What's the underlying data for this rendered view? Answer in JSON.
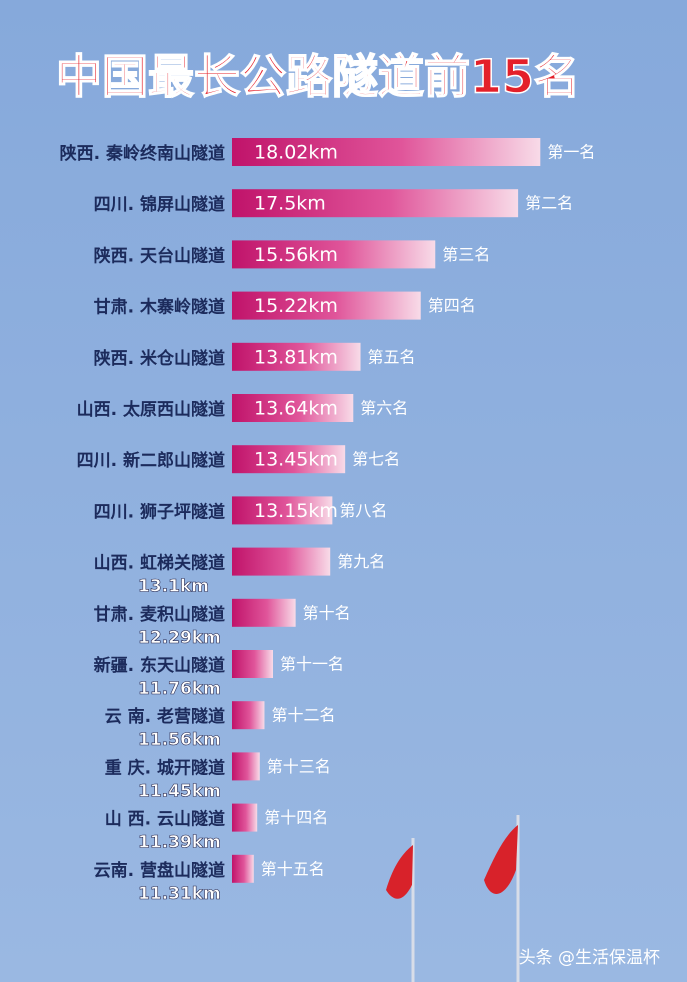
{
  "chart_data": {
    "type": "bar",
    "orientation": "horizontal",
    "title": "中国最长公路隧道前15名",
    "categories": [
      "陕西. 秦岭终南山隧道",
      "四川. 锦屏山隧道",
      "陕西. 天台山隧道",
      "甘肃. 木寨岭隧道",
      "陕西. 米仓山隧道",
      "山西. 太原西山隧道",
      "四川. 新二郎山隧道",
      "四川. 狮子坪隧道",
      "山西. 虹梯关隧道",
      "甘肃. 麦积山隧道",
      "新疆. 东天山隧道",
      "云 南. 老营隧道",
      "重 庆. 城开隧道",
      "山 西. 云山隧道",
      "云南. 营盘山隧道"
    ],
    "values": [
      18.02,
      17.5,
      15.56,
      15.22,
      13.81,
      13.64,
      13.45,
      13.15,
      13.1,
      12.29,
      11.76,
      11.56,
      11.45,
      11.39,
      11.31
    ],
    "value_labels": [
      "18.02km",
      "17.5km",
      "15.56km",
      "15.22km",
      "13.81km",
      "13.64km",
      "13.45km",
      "13.15km",
      "13.1km",
      "12.29km",
      "11.76km",
      "11.56km",
      "11.45km",
      "11.39km",
      "11.31km"
    ],
    "rank_labels": [
      "第一名",
      "第二名",
      "第三名",
      "第四名",
      "第五名",
      "第六名",
      "第七名",
      "第八名",
      "第九名",
      "第十名",
      "第十一名",
      "第十二名",
      "第十三名",
      "第十四名",
      "第十五名"
    ],
    "xlim": [
      10.8,
      18.2
    ],
    "color": "#c0136a"
  },
  "watermark": "头条 @生活保温杯"
}
